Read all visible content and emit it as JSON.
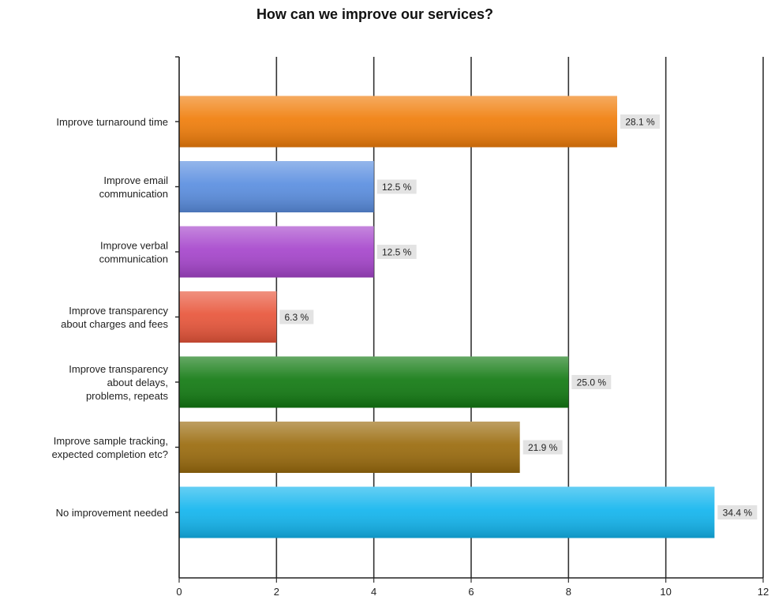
{
  "chart_data": {
    "type": "bar",
    "orientation": "horizontal",
    "title": "How can we improve our services?",
    "xlim": [
      0,
      12
    ],
    "x_ticks": [
      "0",
      "2",
      "4",
      "6",
      "8",
      "10",
      "12"
    ],
    "grid": true,
    "categories": [
      "Improve turnaround time",
      "Improve email communication",
      "Improve verbal communication",
      "Improve transparency about charges and fees",
      "Improve transparency about delays, problems, repeats",
      "Improve sample tracking, expected completion etc?",
      "No improvement needed"
    ],
    "category_lines": [
      [
        "Improve turnaround time"
      ],
      [
        "Improve email",
        "communication"
      ],
      [
        "Improve verbal",
        "communication"
      ],
      [
        "Improve transparency",
        "about charges and fees"
      ],
      [
        "Improve transparency",
        "about delays,",
        "problems, repeats"
      ],
      [
        "Improve sample tracking,",
        "expected completion etc?"
      ],
      [
        "No improvement needed"
      ]
    ],
    "values": [
      9,
      4,
      4,
      2,
      8,
      7,
      11
    ],
    "data_labels": [
      "28.1 %",
      "12.5 %",
      "12.5 %",
      "6.3 %",
      "25.0 %",
      "21.9 %",
      "34.4 %"
    ],
    "colors": [
      "#f07d0a",
      "#5a8ee0",
      "#a645cc",
      "#e8553a",
      "#127a12",
      "#9a6b0d",
      "#12b5ee"
    ]
  }
}
